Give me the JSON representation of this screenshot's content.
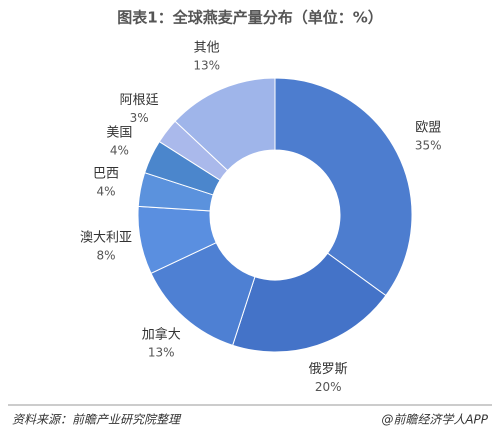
{
  "chart_data": {
    "type": "donut",
    "title": "图表1：全球燕麦产量分布（单位：%）",
    "categories": [
      "欧盟",
      "俄罗斯",
      "加拿大",
      "澳大利亚",
      "巴西",
      "美国",
      "阿根廷",
      "其他"
    ],
    "values": [
      35,
      20,
      13,
      8,
      4,
      4,
      3,
      13
    ],
    "value_labels": [
      "35%",
      "20%",
      "13%",
      "8%",
      "4%",
      "4%",
      "3%",
      "13%"
    ],
    "colors": [
      "#4d7dcf",
      "#4473c8",
      "#4e80d3",
      "#5a8fe0",
      "#5b92dd",
      "#4b86cc",
      "#aab9eb",
      "#9fb5ea"
    ],
    "source": "资料来源：前瞻产业研究院整理",
    "credit": "@前瞻经济学人APP"
  }
}
